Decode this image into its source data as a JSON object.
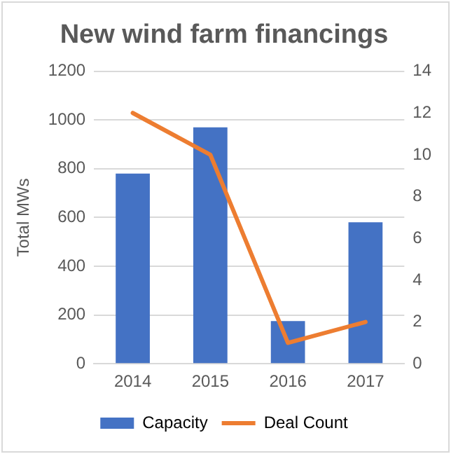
{
  "chart_data": {
    "type": "bar",
    "title": "New wind farm financings",
    "ylabel": "Total MWs",
    "categories": [
      "2014",
      "2015",
      "2016",
      "2017"
    ],
    "series": [
      {
        "name": "Capacity",
        "color": "#4472c4",
        "values": [
          780,
          970,
          175,
          580
        ]
      },
      {
        "name": "Deal Count",
        "type": "line",
        "axis": "y2",
        "color": "#ed7d31",
        "values": [
          12,
          10,
          1,
          2
        ]
      }
    ],
    "ylim": [
      0,
      1200
    ],
    "yticks": [
      0,
      200,
      400,
      600,
      800,
      1000,
      1200
    ],
    "y2lim": [
      0,
      14
    ],
    "y2ticks": [
      0,
      2,
      4,
      6,
      8,
      10,
      12,
      14
    ],
    "grid": "y",
    "legend": "bottom",
    "marker": "none"
  }
}
